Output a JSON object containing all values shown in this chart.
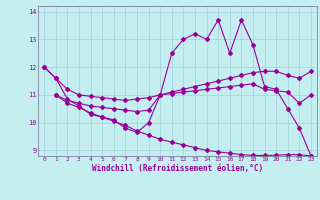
{
  "xlabel": "Windchill (Refroidissement éolien,°C)",
  "bg_color": "#c5eef0",
  "line_color": "#990099",
  "grid_color": "#a0d0d8",
  "spine_color": "#8080a0",
  "xlim": [
    -0.5,
    23.5
  ],
  "ylim": [
    8.8,
    14.2
  ],
  "yticks": [
    9,
    10,
    11,
    12,
    13,
    14
  ],
  "xticks": [
    0,
    1,
    2,
    3,
    4,
    5,
    6,
    7,
    8,
    9,
    10,
    11,
    12,
    13,
    14,
    15,
    16,
    17,
    18,
    19,
    20,
    21,
    22,
    23
  ],
  "series": [
    {
      "x": [
        0,
        1,
        2,
        3,
        4,
        5,
        6,
        7,
        8,
        9,
        10,
        11,
        12,
        13,
        14,
        15,
        16,
        17,
        18,
        19,
        20,
        21,
        22,
        23
      ],
      "y": [
        12.0,
        11.6,
        10.85,
        10.6,
        10.3,
        10.2,
        10.1,
        9.8,
        9.65,
        10.0,
        11.0,
        12.5,
        13.0,
        13.2,
        13.0,
        13.7,
        12.5,
        13.7,
        12.8,
        11.3,
        11.2,
        10.5,
        9.8,
        8.8
      ]
    },
    {
      "x": [
        0,
        1,
        2,
        3,
        4,
        5,
        6,
        7,
        8,
        9,
        10,
        11,
        12,
        13,
        14,
        15,
        16,
        17,
        18,
        19,
        20,
        21,
        22,
        23
      ],
      "y": [
        12.0,
        11.6,
        11.2,
        11.0,
        10.95,
        10.9,
        10.85,
        10.8,
        10.85,
        10.9,
        11.0,
        11.1,
        11.2,
        11.3,
        11.4,
        11.5,
        11.6,
        11.7,
        11.8,
        11.85,
        11.85,
        11.7,
        11.6,
        11.85
      ]
    },
    {
      "x": [
        1,
        2,
        3,
        4,
        5,
        6,
        7,
        8,
        9,
        10,
        11,
        12,
        13,
        14,
        15,
        16,
        17,
        18,
        19,
        20,
        21,
        22,
        23
      ],
      "y": [
        11.0,
        10.8,
        10.7,
        10.6,
        10.55,
        10.5,
        10.45,
        10.4,
        10.45,
        11.0,
        11.05,
        11.1,
        11.15,
        11.2,
        11.25,
        11.3,
        11.35,
        11.4,
        11.2,
        11.15,
        11.1,
        10.7,
        11.0
      ]
    },
    {
      "x": [
        1,
        2,
        3,
        4,
        5,
        6,
        7,
        8,
        9,
        10,
        11,
        12,
        13,
        14,
        15,
        16,
        17,
        18,
        19,
        20,
        21,
        22,
        23
      ],
      "y": [
        11.0,
        10.7,
        10.55,
        10.35,
        10.2,
        10.05,
        9.9,
        9.7,
        9.55,
        9.4,
        9.3,
        9.2,
        9.1,
        9.0,
        8.95,
        8.9,
        8.85,
        8.82,
        8.82,
        8.83,
        8.85,
        8.85,
        8.8
      ]
    }
  ]
}
